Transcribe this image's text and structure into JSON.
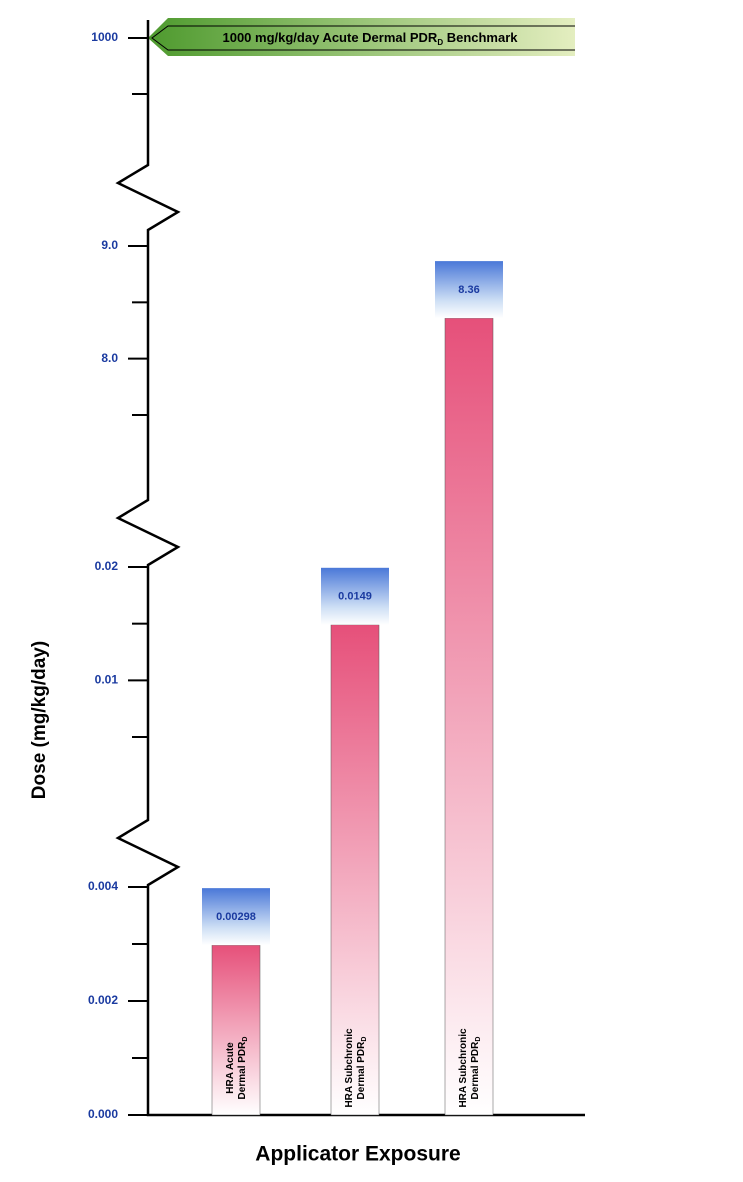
{
  "chart_data": {
    "type": "bar",
    "y_label": "Dose (mg/kg/day)",
    "x_label": "Applicator Exposure",
    "benchmark": {
      "text": "1000 mg/kg/day Acute Dermal PDR",
      "sub": "D",
      "suffix": " Benchmark"
    },
    "categories": [
      {
        "lines": [
          "HRA Acute",
          "Dermal PDR"
        ],
        "sub": "D"
      },
      {
        "lines": [
          "HRA Subchronic",
          "Dermal PDR"
        ],
        "sub": "D"
      },
      {
        "lines": [
          "HRA Subchronic",
          "Dermal PDR"
        ],
        "sub": "D"
      }
    ],
    "values": [
      0.00298,
      0.0149,
      8.36
    ],
    "segments": [
      {
        "ylim": [
          0,
          0.004
        ],
        "yticks": [
          {
            "value": 0,
            "label": "0.000"
          },
          {
            "value": 0.002,
            "label": "0.002"
          },
          {
            "value": 0.004,
            "label": "0.004"
          }
        ],
        "yminor": [
          0.001,
          0.003
        ]
      },
      {
        "ylim": [
          0.005,
          0.02
        ],
        "yticks": [
          0.01,
          0.02
        ],
        "yminor": [
          0.005,
          0.015
        ]
      },
      {
        "ylim": [
          7.5,
          9.0
        ],
        "yticks": [
          {
            "value": 8,
            "label": "8.0"
          },
          {
            "value": 9,
            "label": "9.0"
          }
        ],
        "yminor": [
          7.5,
          8.5
        ]
      },
      {
        "yticks": [
          1000
        ]
      }
    ]
  }
}
